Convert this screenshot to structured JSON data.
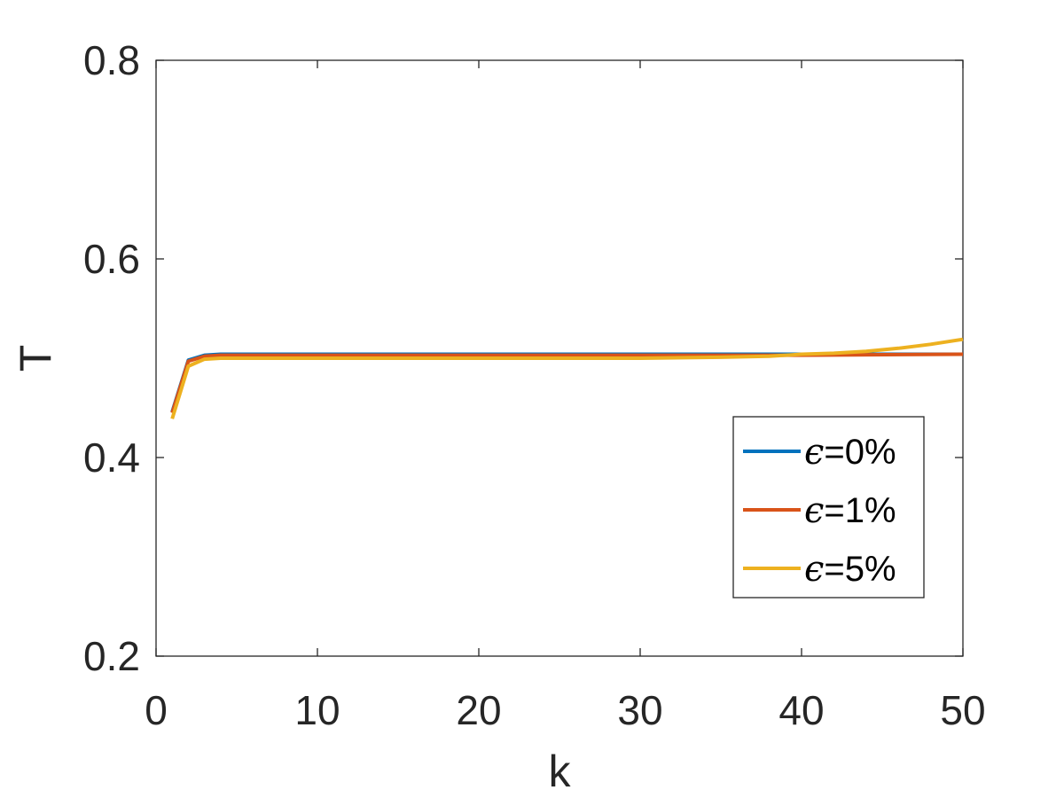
{
  "chart_data": {
    "type": "line",
    "xlabel": "k",
    "ylabel": "T",
    "xlim": [
      0,
      50
    ],
    "ylim": [
      0.2,
      0.8
    ],
    "xticks": [
      0,
      10,
      20,
      30,
      40,
      50
    ],
    "xtick_labels": [
      "0",
      "10",
      "20",
      "30",
      "40",
      "50"
    ],
    "yticks": [
      0.2,
      0.4,
      0.6,
      0.8
    ],
    "ytick_labels": [
      "0.2",
      "0.4",
      "0.6",
      "0.8"
    ],
    "grid": false,
    "legend_position": "right",
    "series": [
      {
        "name": "ϵ=0%",
        "legend_symbol": "ϵ",
        "legend_suffix": "=0%",
        "color": "#0072BD",
        "x": [
          1,
          2,
          3,
          4,
          5,
          10,
          20,
          30,
          40,
          50
        ],
        "y": [
          0.446,
          0.498,
          0.503,
          0.504,
          0.504,
          0.504,
          0.504,
          0.504,
          0.504,
          0.504
        ]
      },
      {
        "name": "ϵ=1%",
        "legend_symbol": "ϵ",
        "legend_suffix": "=1%",
        "color": "#D95319",
        "x": [
          1,
          2,
          3,
          4,
          5,
          10,
          20,
          30,
          40,
          50
        ],
        "y": [
          0.445,
          0.497,
          0.502,
          0.503,
          0.503,
          0.503,
          0.503,
          0.503,
          0.503,
          0.504
        ]
      },
      {
        "name": "ϵ=5%",
        "legend_symbol": "ϵ",
        "legend_suffix": "=5%",
        "color": "#EDB120",
        "x": [
          1,
          2,
          3,
          4,
          5,
          10,
          20,
          30,
          35,
          38,
          40,
          42,
          44,
          46,
          48,
          50
        ],
        "y": [
          0.439,
          0.492,
          0.499,
          0.5,
          0.5,
          0.5,
          0.5,
          0.5,
          0.501,
          0.502,
          0.504,
          0.505,
          0.507,
          0.51,
          0.514,
          0.519
        ]
      }
    ]
  }
}
